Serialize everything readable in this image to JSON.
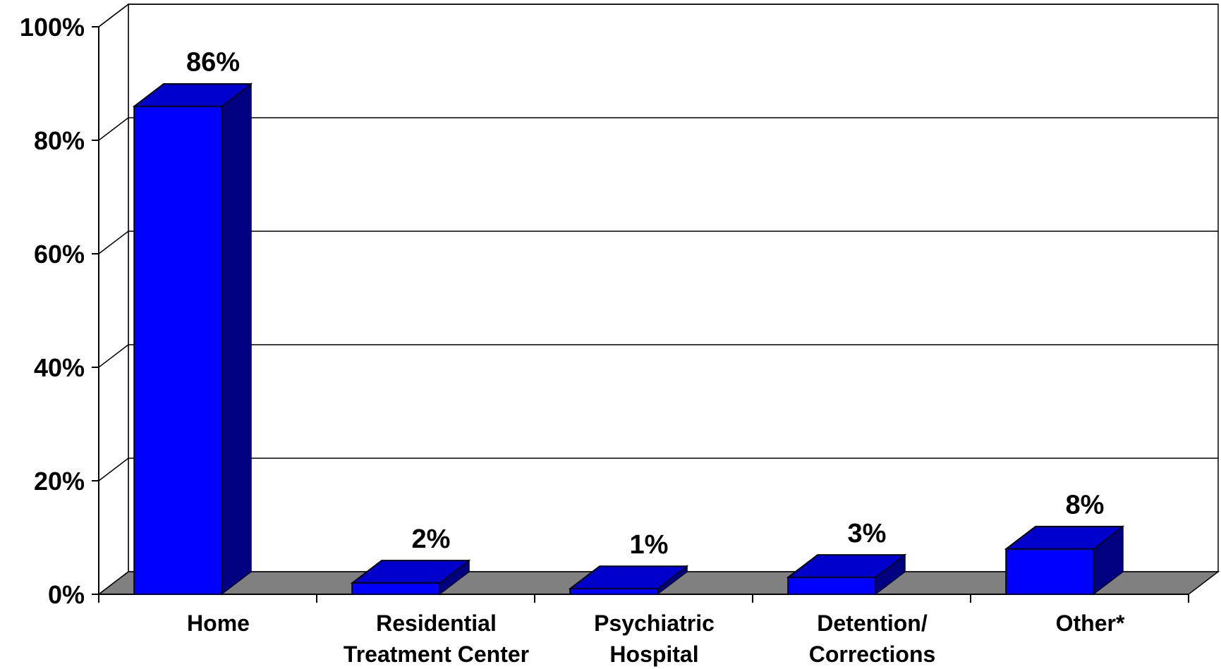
{
  "chart_data": {
    "type": "bar",
    "style": "3d",
    "categories": [
      [
        "Home"
      ],
      [
        "Residential",
        "Treatment Center"
      ],
      [
        "Psychiatric",
        "Hospital"
      ],
      [
        "Detention/",
        "Corrections"
      ],
      [
        "Other*"
      ]
    ],
    "values": [
      86,
      2,
      1,
      3,
      8
    ],
    "data_labels": [
      "86%",
      "2%",
      "1%",
      "3%",
      "8%"
    ],
    "ylim": [
      0,
      100
    ],
    "yticks": [
      0,
      20,
      40,
      60,
      80,
      100
    ],
    "ytick_labels": [
      "0%",
      "20%",
      "40%",
      "60%",
      "80%",
      "100%"
    ],
    "grid": true,
    "colors": {
      "bar_front": "#0000ff",
      "bar_top": "#0000cc",
      "bar_side": "#000080",
      "floor": "#808080"
    }
  }
}
